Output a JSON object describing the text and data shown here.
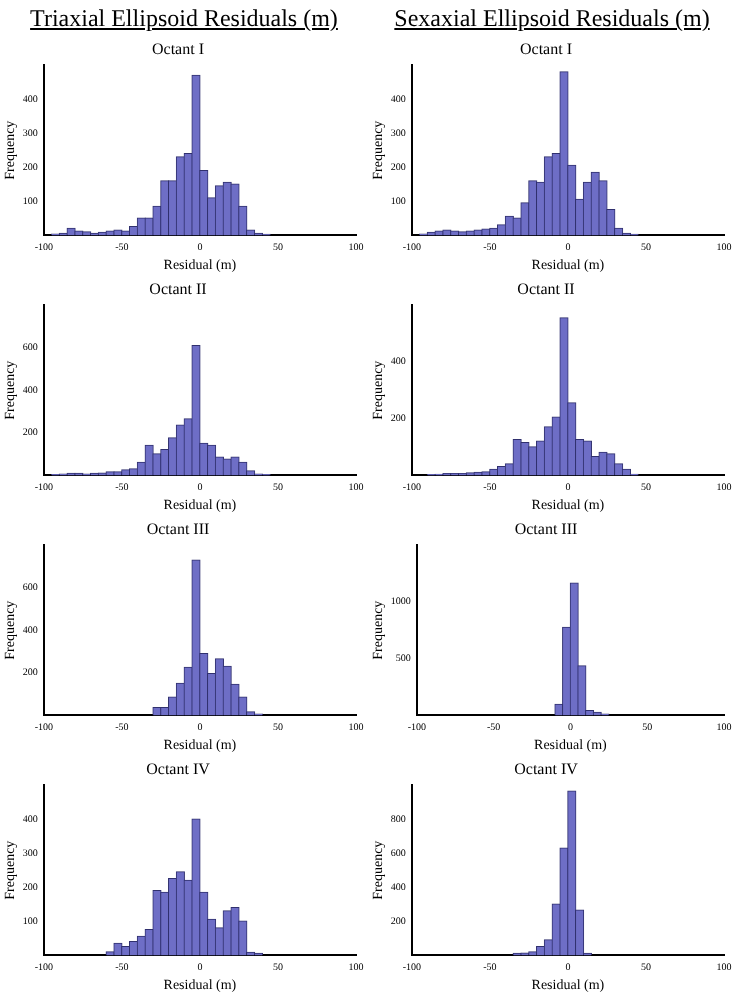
{
  "chart_data": [
    {
      "type": "histogram",
      "title": "Octant I",
      "annotations": [
        "Triaxial Ellipsoid Residuals (m)"
      ],
      "xlabel": "Residual (m)",
      "ylabel": "Frequency",
      "color": "#6e6ec6",
      "bins": [
        -100,
        -95,
        -90,
        -85,
        -80,
        -75,
        -70,
        -65,
        -60,
        -55,
        -50,
        -45,
        -40,
        -35,
        -30,
        -25,
        -20,
        -15,
        -10,
        -5,
        0,
        5,
        10,
        15,
        20,
        25,
        30,
        35,
        40,
        45,
        50,
        55,
        60,
        65,
        70,
        75,
        80,
        85,
        90,
        95,
        100
      ],
      "values": [
        null,
        3,
        5,
        20,
        12,
        10,
        5,
        8,
        12,
        15,
        12,
        25,
        50,
        50,
        85,
        160,
        160,
        230,
        240,
        470,
        190,
        110,
        145,
        155,
        150,
        85,
        15,
        5,
        2,
        0,
        0,
        0,
        0,
        0,
        0,
        0,
        0,
        0,
        0,
        0
      ],
      "xlim": [
        -100,
        100
      ],
      "xticks": [
        -100,
        -50,
        0,
        50,
        100
      ],
      "ylim": [
        0,
        500
      ],
      "yticks": [
        100,
        200,
        300,
        400
      ]
    },
    {
      "type": "histogram",
      "title": "Octant I",
      "annotations": [
        "Sexaxial Ellipsoid Residuals (m)"
      ],
      "xlabel": "Residual (m)",
      "ylabel": "Frequency",
      "color": "#6e6ec6",
      "bins": [
        -100,
        -95,
        -90,
        -85,
        -80,
        -75,
        -70,
        -65,
        -60,
        -55,
        -50,
        -45,
        -40,
        -35,
        -30,
        -25,
        -20,
        -15,
        -10,
        -5,
        0,
        5,
        10,
        15,
        20,
        25,
        30,
        35,
        40,
        45,
        50,
        55,
        60,
        65,
        70,
        75,
        80,
        85,
        90,
        95,
        100
      ],
      "values": [
        0,
        3,
        8,
        12,
        15,
        12,
        10,
        12,
        15,
        18,
        20,
        30,
        55,
        50,
        95,
        160,
        155,
        230,
        240,
        480,
        205,
        105,
        155,
        185,
        160,
        75,
        20,
        5,
        2,
        0,
        0,
        0,
        0,
        0,
        0,
        0,
        0,
        0,
        0,
        0
      ],
      "xlim": [
        -100,
        100
      ],
      "xticks": [
        -100,
        -50,
        0,
        50,
        100
      ],
      "ylim": [
        0,
        500
      ],
      "yticks": [
        100,
        200,
        300,
        400
      ]
    },
    {
      "type": "histogram",
      "title": "Octant II",
      "xlabel": "Residual (m)",
      "ylabel": "Frequency",
      "color": "#6e6ec6",
      "bins": [
        -100,
        -95,
        -90,
        -85,
        -80,
        -75,
        -70,
        -65,
        -60,
        -55,
        -50,
        -45,
        -40,
        -35,
        -30,
        -25,
        -20,
        -15,
        -10,
        -5,
        0,
        5,
        10,
        15,
        20,
        25,
        30,
        35,
        40,
        45,
        50,
        55,
        60,
        65,
        70,
        75,
        80,
        85,
        90,
        95,
        100
      ],
      "values": [
        0,
        2,
        5,
        8,
        8,
        5,
        8,
        10,
        15,
        15,
        25,
        30,
        60,
        140,
        100,
        120,
        175,
        235,
        265,
        610,
        150,
        140,
        85,
        75,
        85,
        60,
        20,
        5,
        2,
        0,
        0,
        0,
        0,
        0,
        0,
        0,
        0,
        0,
        0,
        0
      ],
      "xlim": [
        -100,
        100
      ],
      "xticks": [
        -100,
        -50,
        0,
        50,
        100
      ],
      "ylim": [
        0,
        800
      ],
      "yticks": [
        200,
        400,
        600
      ]
    },
    {
      "type": "histogram",
      "title": "Octant II",
      "xlabel": "Residual (m)",
      "ylabel": "Frequency",
      "color": "#6e6ec6",
      "bins": [
        -100,
        -95,
        -90,
        -85,
        -80,
        -75,
        -70,
        -65,
        -60,
        -55,
        -50,
        -45,
        -40,
        -35,
        -30,
        -25,
        -20,
        -15,
        -10,
        -5,
        0,
        5,
        10,
        15,
        20,
        25,
        30,
        35,
        40,
        45,
        50,
        55,
        60,
        65,
        70,
        75,
        80,
        85,
        90,
        95,
        100
      ],
      "values": [
        0,
        0,
        2,
        3,
        5,
        5,
        5,
        8,
        10,
        12,
        20,
        30,
        40,
        125,
        115,
        100,
        120,
        170,
        205,
        555,
        255,
        125,
        120,
        65,
        80,
        75,
        40,
        20,
        3,
        0,
        0,
        0,
        0,
        0,
        0,
        0,
        0,
        0,
        0,
        0
      ],
      "xlim": [
        -100,
        100
      ],
      "xticks": [
        -100,
        -50,
        0,
        50,
        100
      ],
      "ylim": [
        0,
        600
      ],
      "yticks": [
        200,
        400
      ]
    },
    {
      "type": "histogram",
      "title": "Octant III",
      "xlabel": "Residual (m)",
      "ylabel": "Frequency",
      "color": "#6e6ec6",
      "bins": [
        -100,
        -95,
        -90,
        -85,
        -80,
        -75,
        -70,
        -65,
        -60,
        -55,
        -50,
        -45,
        -40,
        -35,
        -30,
        -25,
        -20,
        -15,
        -10,
        -5,
        0,
        5,
        10,
        15,
        20,
        25,
        30,
        35,
        40,
        45,
        50,
        55,
        60,
        65,
        70,
        75,
        80,
        85,
        90,
        95,
        100
      ],
      "values": [
        0,
        0,
        0,
        0,
        0,
        0,
        0,
        0,
        0,
        0,
        0,
        0,
        0,
        0,
        35,
        35,
        85,
        150,
        225,
        730,
        290,
        195,
        265,
        230,
        145,
        85,
        15,
        5,
        0,
        0,
        0,
        0,
        0,
        0,
        0,
        0,
        0,
        0,
        0,
        0
      ],
      "xlim": [
        -100,
        100
      ],
      "xticks": [
        -100,
        -50,
        0,
        50,
        100
      ],
      "ylim": [
        0,
        800
      ],
      "yticks": [
        200,
        400,
        600
      ]
    },
    {
      "type": "histogram",
      "title": "Octant III",
      "xlabel": "Residual (m)",
      "ylabel": "Frequency",
      "color": "#6e6ec6",
      "bins": [
        -100,
        -95,
        -90,
        -85,
        -80,
        -75,
        -70,
        -65,
        -60,
        -55,
        -50,
        -45,
        -40,
        -35,
        -30,
        -25,
        -20,
        -15,
        -10,
        -5,
        0,
        5,
        10,
        15,
        20,
        25,
        30,
        35,
        40,
        45,
        50,
        55,
        60,
        65,
        70,
        75,
        80,
        85,
        90,
        95,
        100
      ],
      "values": [
        0,
        0,
        0,
        0,
        0,
        0,
        0,
        0,
        0,
        0,
        0,
        0,
        0,
        0,
        0,
        0,
        0,
        0,
        95,
        775,
        1165,
        435,
        40,
        25,
        10,
        0,
        0,
        0,
        0,
        0,
        0,
        0,
        0,
        0,
        0,
        0,
        0,
        0,
        0,
        0
      ],
      "xlim": [
        -100,
        100
      ],
      "xticks": [
        -100,
        -50,
        0,
        50,
        100
      ],
      "ylim": [
        0,
        1500
      ],
      "yticks": [
        500,
        1000
      ]
    },
    {
      "type": "histogram",
      "title": "Octant IV",
      "xlabel": "Residual (m)",
      "ylabel": "Frequency",
      "color": "#6e6ec6",
      "bins": [
        -100,
        -95,
        -90,
        -85,
        -80,
        -75,
        -70,
        -65,
        -60,
        -55,
        -50,
        -45,
        -40,
        -35,
        -30,
        -25,
        -20,
        -15,
        -10,
        -5,
        0,
        5,
        10,
        15,
        20,
        25,
        30,
        35,
        40,
        45,
        50,
        55,
        60,
        65,
        70,
        75,
        80,
        85,
        90,
        95,
        100
      ],
      "values": [
        0,
        0,
        0,
        0,
        0,
        0,
        0,
        0,
        10,
        35,
        25,
        40,
        55,
        75,
        190,
        185,
        225,
        245,
        220,
        400,
        185,
        105,
        80,
        130,
        140,
        100,
        8,
        5,
        0,
        0,
        0,
        0,
        0,
        0,
        0,
        0,
        0,
        0,
        0,
        0
      ],
      "xlim": [
        -100,
        100
      ],
      "xticks": [
        -100,
        -50,
        0,
        50,
        100
      ],
      "ylim": [
        0,
        500
      ],
      "yticks": [
        100,
        200,
        300,
        400
      ]
    },
    {
      "type": "histogram",
      "title": "Octant IV",
      "xlabel": "Residual (m)",
      "ylabel": "Frequency",
      "color": "#6e6ec6",
      "bins": [
        -100,
        -95,
        -90,
        -85,
        -80,
        -75,
        -70,
        -65,
        -60,
        -55,
        -50,
        -45,
        -40,
        -35,
        -30,
        -25,
        -20,
        -15,
        -10,
        -5,
        0,
        5,
        10,
        15,
        20,
        25,
        30,
        35,
        40,
        45,
        50,
        55,
        60,
        65,
        70,
        75,
        80,
        85,
        90,
        95,
        100
      ],
      "values": [
        0,
        0,
        0,
        0,
        0,
        0,
        0,
        0,
        0,
        0,
        0,
        0,
        0,
        10,
        12,
        20,
        50,
        90,
        300,
        630,
        965,
        265,
        10,
        0,
        0,
        0,
        0,
        0,
        0,
        0,
        0,
        0,
        0,
        0,
        0,
        0,
        0,
        0,
        0,
        0
      ],
      "xlim": [
        -100,
        100
      ],
      "xticks": [
        -100,
        -50,
        0,
        50,
        100
      ],
      "ylim": [
        0,
        1000
      ],
      "yticks": [
        200,
        400,
        600,
        800
      ]
    }
  ]
}
